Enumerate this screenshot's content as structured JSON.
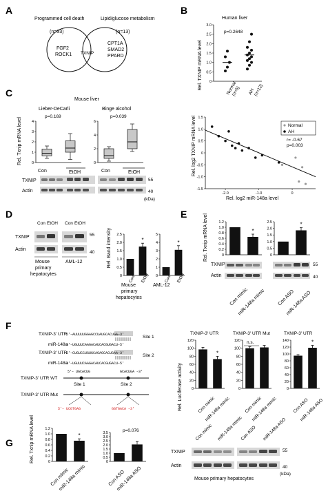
{
  "colors": {
    "highlight": "#cfcfcf",
    "mutation": "#d42020",
    "bar": "#111111",
    "box": "#c8c8c8",
    "blot_bg": "#e8e8e8"
  },
  "panelA": {
    "label": "A",
    "left_title": "Programmed cell death",
    "left_n": "(n=33)",
    "left_genes_1": "FGF2",
    "left_genes_2": "ROCK1",
    "center": "TXNIP",
    "right_title": "Lipid/glucose metabolism",
    "right_n": "(n=13)",
    "right_genes_1": "CPT1A",
    "right_genes_2": "SMAD2",
    "right_genes_3": "PPARD"
  },
  "panelB": {
    "label": "B",
    "title": "Human liver",
    "pval": "p=0.2648",
    "ylabel": "Rel. TXNIP mRNA level",
    "yticks": [
      "0",
      "0.5",
      "1.0",
      "1.5",
      "2.0",
      "2.5",
      "3.0"
    ],
    "xcats": [
      "Normal",
      "AH"
    ],
    "xn": [
      "(n=5)",
      "(n=12)"
    ],
    "chart_data": {
      "type": "scatter",
      "ylim": [
        0,
        3.0
      ],
      "categories": [
        "Normal",
        "AH"
      ],
      "series": [
        {
          "name": "Normal",
          "values": [
            0.55,
            0.75,
            1.0,
            1.3,
            1.6
          ],
          "median": 1.0
        },
        {
          "name": "AH",
          "values": [
            0.65,
            0.85,
            1.0,
            1.1,
            1.2,
            1.3,
            1.4,
            1.5,
            1.65,
            1.8,
            2.1,
            2.5
          ],
          "median": 1.4
        }
      ]
    }
  },
  "panelC": {
    "label": "C",
    "title": "Mouse liver",
    "left_title": "Lieber-DeCarli",
    "left_p": "p=0.169",
    "right_title": "Binge alcohol",
    "right_p": "p=0.039",
    "ylabel": "Rel. Txnip mRNA level",
    "left_yticks": [
      "0",
      "1",
      "2",
      "3",
      "4"
    ],
    "right_yticks": [
      "0",
      "2",
      "4",
      "6"
    ],
    "xcats": [
      "Con",
      "EtOH"
    ],
    "xcats2": [
      "Con",
      "EtOH"
    ],
    "group_label": "EtOH",
    "blot_txnip": "TXNIP",
    "blot_actin": "Actin",
    "mw55": "55",
    "mw40": "40",
    "kda": "(kDa)",
    "chart_data": [
      {
        "type": "box",
        "title": "Lieber-DeCarli",
        "ylim": [
          0,
          4
        ],
        "categories": [
          "Con",
          "EtOH"
        ],
        "boxes": [
          {
            "min": 0.4,
            "q1": 0.65,
            "median": 0.9,
            "q3": 1.3,
            "max": 1.6
          },
          {
            "min": 0.3,
            "q1": 1.0,
            "median": 1.4,
            "q3": 2.1,
            "max": 2.8
          }
        ]
      },
      {
        "type": "box",
        "title": "Binge alcohol",
        "ylim": [
          0,
          6
        ],
        "categories": [
          "Con",
          "EtOH"
        ],
        "boxes": [
          {
            "min": 0.2,
            "q1": 0.6,
            "median": 1.0,
            "q3": 2.0,
            "max": 2.3
          },
          {
            "min": 1.6,
            "q1": 2.0,
            "median": 3.0,
            "q3": 4.8,
            "max": 5.6
          }
        ]
      }
    ],
    "scatter": {
      "ylabel": "Rel. log2 TXNIP mRNA level",
      "xlabel": "Rel. log2 miR-148a level",
      "legend": [
        "Normal",
        "AH"
      ],
      "r": "r= -0.67",
      "p": "p=0.003",
      "yticks": [
        "-1.5",
        "-1.0",
        "-0.5",
        "0",
        "0.5",
        "1.0",
        "1.5"
      ],
      "xticks": [
        "-2.0",
        "-1.0",
        "0"
      ],
      "chart_data": {
        "type": "scatter",
        "xlim": [
          -2.6,
          0.7
        ],
        "ylim": [
          -1.5,
          1.5
        ],
        "series": [
          {
            "name": "Normal",
            "x": [
              0.1,
              0.3,
              -0.3,
              0.2,
              0.4
            ],
            "y": [
              -0.2,
              -0.6,
              -0.5,
              -1.2,
              -1.3
            ]
          },
          {
            "name": "AH",
            "x": [
              -2.4,
              -2.2,
              -2.0,
              -1.9,
              -1.8,
              -1.7,
              -1.6,
              -1.5,
              -1.3,
              -1.1,
              -0.9,
              -0.4
            ],
            "y": [
              1.1,
              0.7,
              0.5,
              0.9,
              0.3,
              0.2,
              0.4,
              0.1,
              0.2,
              -0.2,
              -0.1,
              -0.4
            ]
          }
        ],
        "fit": [
          {
            "x": -2.6,
            "y": 0.95
          },
          {
            "x": 0.7,
            "y": -1.0
          }
        ]
      }
    }
  },
  "panelD": {
    "label": "D",
    "blot_txnip": "TXNIP",
    "blot_actin": "Actin",
    "lanes1": [
      "Con",
      "EtOH"
    ],
    "lanes2": [
      "Con",
      "EtOH"
    ],
    "cell1_a": "Mouse",
    "cell1_b": "primary",
    "cell1_c": "hepatocytes",
    "cell2": "AML-12",
    "mw55": "55",
    "mw40": "40",
    "ylabel": "Rel. Band intensity",
    "xcats": [
      "Con",
      "EtOH"
    ],
    "star": "*",
    "chart_data": [
      {
        "type": "bar",
        "categories": [
          "Con",
          "EtOH"
        ],
        "values": [
          1.0,
          1.75
        ],
        "errors": [
          0,
          0.2
        ],
        "ylim": [
          0,
          2.5
        ],
        "yticks": [
          "0",
          "0.5",
          "1.0",
          "1.5",
          "2.0",
          "2.5"
        ]
      },
      {
        "type": "bar",
        "categories": [
          "Con",
          "EtOH"
        ],
        "values": [
          1.0,
          3.1
        ],
        "errors": [
          0,
          0.5
        ],
        "ylim": [
          0,
          5
        ],
        "yticks": [
          "0",
          "1",
          "2",
          "3",
          "4",
          "5"
        ]
      }
    ]
  },
  "panelE": {
    "label": "E",
    "ylabel": "Rel. Txnip mRNA level",
    "star": "*",
    "xcats1": [
      "Con mimic",
      "miR-148a mimic"
    ],
    "xcats2": [
      "Con ASO",
      "miR-148a ASO"
    ],
    "blot_txnip": "TXNIP",
    "blot_actin": "Actin",
    "mw55": "55",
    "mw40": "40",
    "chart_data": [
      {
        "type": "bar",
        "categories": [
          "Con mimic",
          "miR-148a mimic"
        ],
        "values": [
          1.0,
          0.65
        ],
        "errors": [
          0,
          0.1
        ],
        "ylim": [
          0,
          1.2
        ],
        "yticks": [
          "0",
          "0.2",
          "0.4",
          "0.6",
          "0.8",
          "1.0",
          "1.2"
        ]
      },
      {
        "type": "bar",
        "categories": [
          "Con ASO",
          "miR-148a ASO"
        ],
        "values": [
          1.0,
          1.85
        ],
        "errors": [
          0,
          0.2
        ],
        "ylim": [
          0,
          2.5
        ],
        "yticks": [
          "0",
          "0.5",
          "1.0",
          "1.5",
          "2.0",
          "2.5"
        ]
      }
    ]
  },
  "panelF": {
    "label": "F",
    "seq1_label": "TXNIP-3' UTR",
    "seq1": "5'–AUUUUUGGAGCCUAUGCACUGA–3'",
    "site1": "Site 1",
    "mir_label": "miR-148a",
    "mir": "3'–UGUUUCAAGACAUCACGUGACU–5'",
    "seq2_label": "TXNIP-3' UTR",
    "seq2": "5'–CUGUCCUGUGCAGAGCACUGAA–3'",
    "site2": "Site 2",
    "wt_label": "TXNIP-3' UTR WT",
    "mut_label": "TXNIP-3' UTR Mut",
    "wt_seq_left": "5'– UGCACUG",
    "wt_seq_right": "GCACUGA –3'",
    "site_a": "Site 1",
    "site_b": "Site 2",
    "mut_left": "5'– UCGTGAG",
    "mut_right": "GGTGACA –3'",
    "ylabel": "Rel. Luciferase activity",
    "ns": "n.s.",
    "star": "*",
    "titles": [
      "TXNIP-3' UTR",
      "TXNIP-3' UTR Mut",
      "TXNIP-3' UTR"
    ],
    "xcats": [
      [
        "Con mimic",
        "miR-148a mimic"
      ],
      [
        "Con mimic",
        "miR-148a mimic"
      ],
      [
        "Con ASO",
        "miR-148a ASO"
      ]
    ],
    "chart_data": [
      {
        "type": "bar",
        "title": "TXNIP-3' UTR",
        "categories": [
          "Con mimic",
          "miR-148a mimic"
        ],
        "values": [
          97,
          73
        ],
        "errors": [
          5,
          7
        ],
        "ylim": [
          0,
          120
        ],
        "yticks": [
          "0",
          "20",
          "40",
          "60",
          "80",
          "100",
          "120"
        ]
      },
      {
        "type": "bar",
        "title": "TXNIP-3' UTR Mut",
        "categories": [
          "Con mimic",
          "miR-148a mimic"
        ],
        "values": [
          100,
          102
        ],
        "errors": [
          4,
          5
        ],
        "ylim": [
          0,
          120
        ],
        "yticks": [
          "0",
          "20",
          "40",
          "60",
          "80",
          "100",
          "120"
        ]
      },
      {
        "type": "bar",
        "title": "TXNIP-3' UTR",
        "categories": [
          "Con ASO",
          "miR-148a ASO"
        ],
        "values": [
          95,
          118
        ],
        "errors": [
          3,
          7
        ],
        "ylim": [
          0,
          140
        ],
        "yticks": [
          "0",
          "20",
          "40",
          "60",
          "80",
          "100",
          "120",
          "140"
        ]
      }
    ]
  },
  "panelG": {
    "label": "G",
    "ylabel": "Rel. Txnip mRNA level",
    "star": "*",
    "pval": "p=0.076",
    "xcats1": [
      "Con mimic",
      "miR-148a mimic"
    ],
    "xcats2": [
      "Con ASO",
      "miR-148a ASO"
    ],
    "blot_lanes": [
      "Con mimic",
      "miR-148a mimic",
      "Con ASO",
      "miR-148a ASO"
    ],
    "blot_txnip": "TXNIP",
    "blot_actin": "Actin",
    "mw55": "55",
    "mw40": "40",
    "kda": "(kDa)",
    "caption": "Mouse primary hepatocytes",
    "chart_data": [
      {
        "type": "bar",
        "categories": [
          "Con mimic",
          "miR-148a mimic"
        ],
        "values": [
          1.0,
          0.75
        ],
        "errors": [
          0,
          0.07
        ],
        "ylim": [
          0,
          1.2
        ],
        "yticks": [
          "0",
          "0.2",
          "0.4",
          "0.6",
          "0.8",
          "1.0",
          "1.2"
        ]
      },
      {
        "type": "bar",
        "categories": [
          "Con ASO",
          "miR-148a ASO"
        ],
        "values": [
          1.0,
          2.05
        ],
        "errors": [
          0,
          0.35
        ],
        "ylim": [
          0,
          3.5
        ],
        "yticks": [
          "0",
          "0.5",
          "1.0",
          "1.5",
          "2.0",
          "2.5",
          "3.0",
          "3.5"
        ]
      }
    ]
  }
}
